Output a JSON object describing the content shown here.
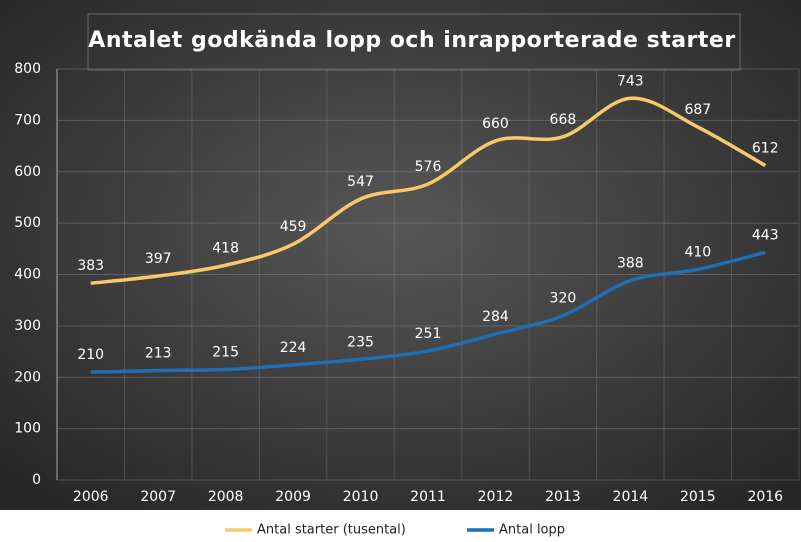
{
  "chart_data": {
    "type": "line",
    "title": "Antalet godkända lopp och inrapporterade starter",
    "categories": [
      "2006",
      "2007",
      "2008",
      "2009",
      "2010",
      "2011",
      "2012",
      "2013",
      "2014",
      "2015",
      "2016"
    ],
    "series": [
      {
        "name": "Antal starter (tusental)",
        "color": "#f8c96b",
        "values": [
          383,
          397,
          418,
          459,
          547,
          576,
          660,
          668,
          743,
          687,
          612
        ]
      },
      {
        "name": "Antal lopp",
        "color": "#1f6fb6",
        "values": [
          210,
          213,
          215,
          224,
          235,
          251,
          284,
          320,
          388,
          410,
          443
        ]
      }
    ],
    "ylim": [
      0,
      800
    ],
    "yticks": [
      0,
      100,
      200,
      300,
      400,
      500,
      600,
      700,
      800
    ],
    "grid": true,
    "legend": "bottom"
  }
}
